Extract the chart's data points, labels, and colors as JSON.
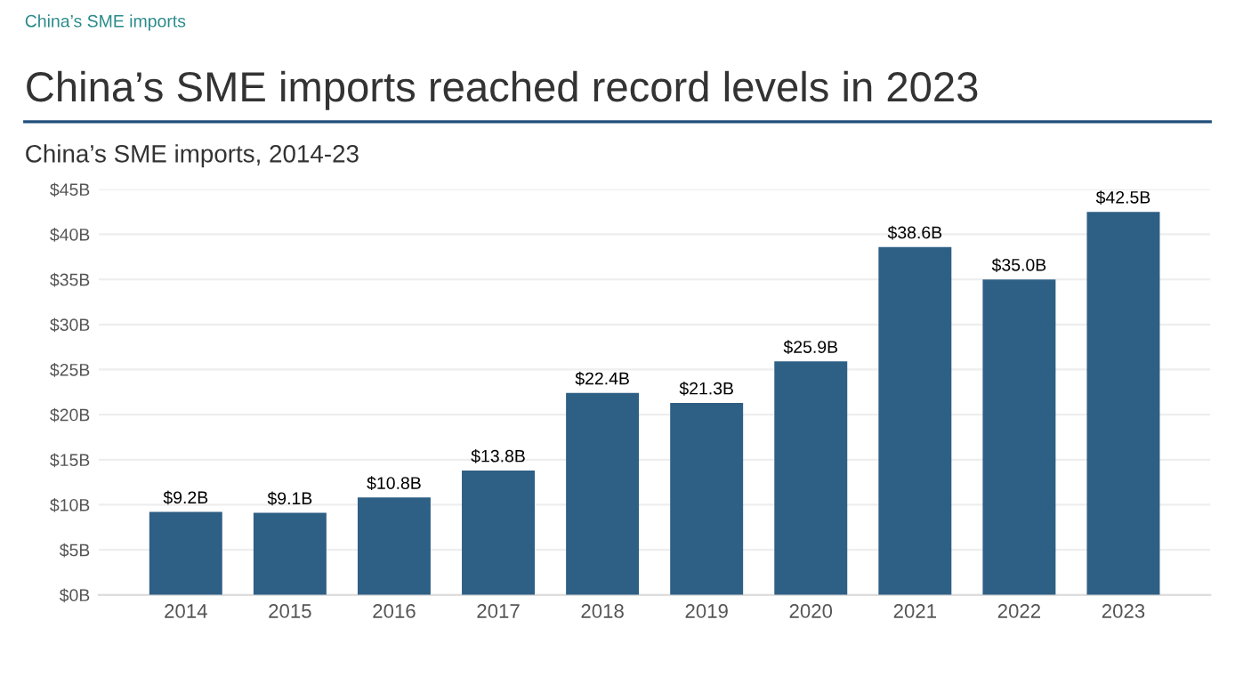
{
  "chart_data": {
    "type": "bar",
    "title": "China’s SME imports reached record levels in 2023",
    "subtitle": "China’s SME imports, 2014-23",
    "annotations": [
      "China’s SME imports"
    ],
    "categories": [
      "2014",
      "2015",
      "2016",
      "2017",
      "2018",
      "2019",
      "2020",
      "2021",
      "2022",
      "2023"
    ],
    "values": [
      9.2,
      9.1,
      10.8,
      13.8,
      22.4,
      21.3,
      25.9,
      38.6,
      35.0,
      42.5
    ],
    "value_labels": [
      "$9.2B",
      "$9.1B",
      "$10.8B",
      "$13.8B",
      "$22.4B",
      "$21.3B",
      "$25.9B",
      "$38.6B",
      "$35.0B",
      "$42.5B"
    ],
    "color": "#2e5f85",
    "ylim": [
      0,
      45
    ],
    "yticks": [
      {
        "value": 0,
        "label": "$0B"
      },
      {
        "value": 5,
        "label": "$5B"
      },
      {
        "value": 10,
        "label": "$10B"
      },
      {
        "value": 15,
        "label": "$15B"
      },
      {
        "value": 20,
        "label": "$20B"
      },
      {
        "value": 25,
        "label": "$25B"
      },
      {
        "value": 30,
        "label": "$30B"
      },
      {
        "value": 35,
        "label": "$35B"
      },
      {
        "value": 40,
        "label": "$40B"
      },
      {
        "value": 45,
        "label": "$45B"
      }
    ],
    "grid": "y",
    "legend": false
  }
}
